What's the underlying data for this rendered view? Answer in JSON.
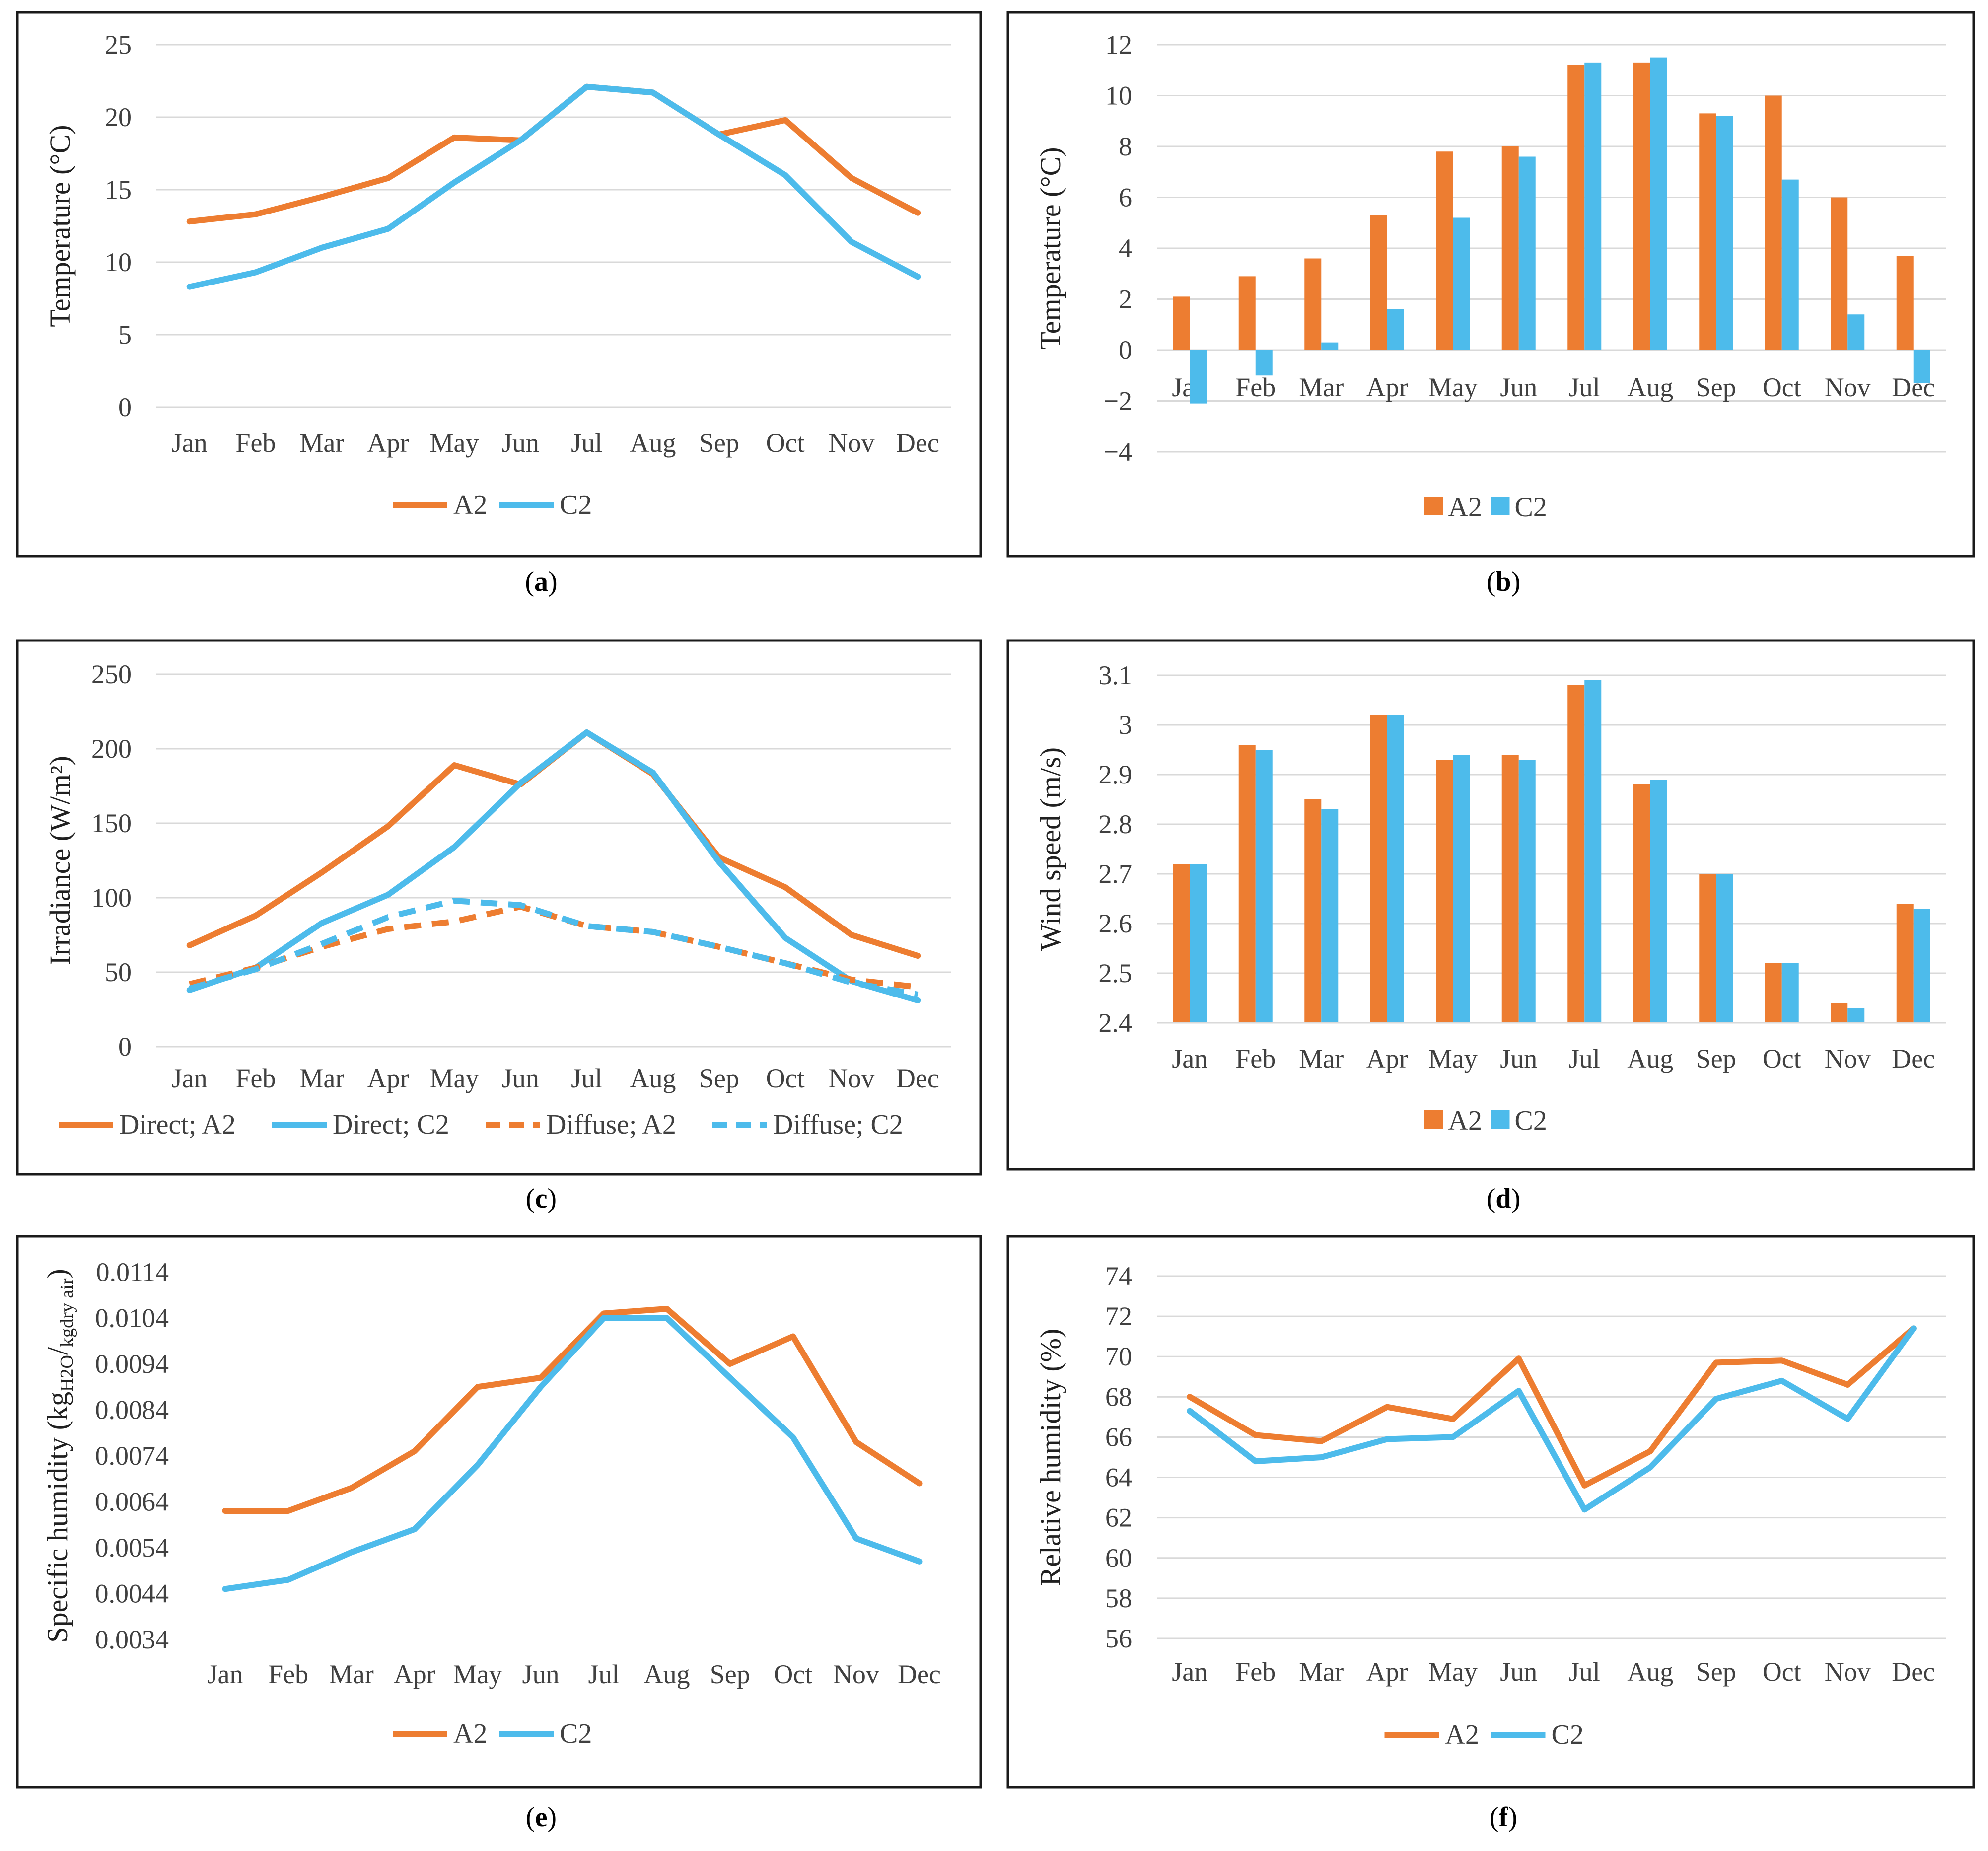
{
  "colors": {
    "A2": "#ed7d31",
    "C2": "#4dbbeb"
  },
  "months": [
    "Jan",
    "Feb",
    "Mar",
    "Apr",
    "May",
    "Jun",
    "Jul",
    "Aug",
    "Sep",
    "Oct",
    "Nov",
    "Dec"
  ],
  "chart_data": [
    {
      "id": "a",
      "caption_letter": "a",
      "type": "line",
      "ylabel": "Temperature (°C)",
      "ylim": [
        0,
        25
      ],
      "yticks": [
        "0",
        "5",
        "10",
        "15",
        "20",
        "25"
      ],
      "grid": true,
      "legend": "bottom",
      "series": [
        {
          "name": "A2",
          "style": "solid",
          "values": [
            12.8,
            13.3,
            14.5,
            15.8,
            18.6,
            18.4,
            22.1,
            21.7,
            18.8,
            19.8,
            15.8,
            13.4
          ]
        },
        {
          "name": "C2",
          "style": "solid",
          "values": [
            8.3,
            9.3,
            11.0,
            12.3,
            15.5,
            18.4,
            22.1,
            21.7,
            18.8,
            16.0,
            11.4,
            9.0
          ]
        }
      ]
    },
    {
      "id": "b",
      "caption_letter": "b",
      "type": "bar",
      "ylabel": "Temperature (°C)",
      "ylim": [
        -4,
        12
      ],
      "yticks": [
        "−4",
        "−2",
        "0",
        "2",
        "4",
        "6",
        "8",
        "10",
        "12"
      ],
      "grid": true,
      "legend": "bottom",
      "category_labels_at": "zero",
      "series": [
        {
          "name": "A2",
          "values": [
            2.1,
            2.9,
            3.6,
            5.3,
            7.8,
            8.0,
            11.2,
            11.3,
            9.3,
            10.0,
            6.0,
            3.7
          ]
        },
        {
          "name": "C2",
          "values": [
            -2.1,
            -1.0,
            0.3,
            1.6,
            5.2,
            7.6,
            11.3,
            11.5,
            9.2,
            6.7,
            1.4,
            -1.3
          ]
        }
      ]
    },
    {
      "id": "c",
      "caption_letter": "c",
      "type": "line",
      "ylabel": "Irradiance (W/m²)",
      "ylim": [
        0,
        250
      ],
      "yticks": [
        "0",
        "50",
        "100",
        "150",
        "200",
        "250"
      ],
      "grid": true,
      "legend": "bottom",
      "series": [
        {
          "name": "Direct; A2",
          "color_key": "A2",
          "style": "solid",
          "values": [
            68,
            88,
            117,
            148,
            189,
            176,
            211,
            183,
            127,
            107,
            75,
            61
          ]
        },
        {
          "name": "Direct; C2",
          "color_key": "C2",
          "style": "solid",
          "values": [
            38,
            53,
            83,
            102,
            134,
            177,
            211,
            184,
            124,
            73,
            44,
            31
          ]
        },
        {
          "name": "Diffuse; A2",
          "color_key": "A2",
          "style": "dashed",
          "values": [
            42,
            53,
            67,
            79,
            84,
            94,
            81,
            77,
            67,
            56,
            45,
            40
          ]
        },
        {
          "name": "Diffuse; C2",
          "color_key": "C2",
          "style": "dashed",
          "values": [
            39,
            52,
            69,
            87,
            98,
            95,
            81,
            77,
            67,
            56,
            43,
            35
          ]
        }
      ]
    },
    {
      "id": "d",
      "caption_letter": "d",
      "type": "bar",
      "ylabel": "Wind speed (m/s)",
      "ylim": [
        2.4,
        3.1
      ],
      "yticks": [
        "2.4",
        "2.5",
        "2.6",
        "2.7",
        "2.8",
        "2.9",
        "3",
        "3.1"
      ],
      "grid": true,
      "legend": "bottom",
      "category_labels_at": "bottom",
      "series": [
        {
          "name": "A2",
          "values": [
            2.72,
            2.96,
            2.85,
            3.02,
            2.93,
            2.94,
            3.08,
            2.88,
            2.7,
            2.52,
            2.44,
            2.64
          ]
        },
        {
          "name": "C2",
          "values": [
            2.72,
            2.95,
            2.83,
            3.02,
            2.94,
            2.93,
            3.09,
            2.89,
            2.7,
            2.52,
            2.43,
            2.63
          ]
        }
      ]
    },
    {
      "id": "e",
      "caption_letter": "e",
      "type": "line",
      "ylabel_main": "Specific humidity (kg",
      "ylabel_sub1": "H2O",
      "ylabel_mid": "/",
      "ylabel_sub2": "kgdry air",
      "ylabel_end": ")",
      "ylim": [
        0.0034,
        0.0114
      ],
      "yticks": [
        "0.0034",
        "0.0044",
        "0.0054",
        "0.0064",
        "0.0074",
        "0.0084",
        "0.0094",
        "0.0104",
        "0.0114"
      ],
      "grid": false,
      "legend": "bottom",
      "series": [
        {
          "name": "A2",
          "style": "solid",
          "values": [
            0.0062,
            0.0062,
            0.0067,
            0.0075,
            0.0089,
            0.0091,
            0.0105,
            0.0106,
            0.0094,
            0.01,
            0.0077,
            0.0068
          ]
        },
        {
          "name": "C2",
          "style": "solid",
          "values": [
            0.0045,
            0.0047,
            0.0053,
            0.0058,
            0.0072,
            0.0089,
            0.0104,
            0.0104,
            0.0091,
            0.0078,
            0.0056,
            0.0051
          ]
        }
      ]
    },
    {
      "id": "f",
      "caption_letter": "f",
      "type": "line",
      "ylabel": "Relative humidity (%)",
      "ylim": [
        56,
        74
      ],
      "yticks": [
        "56",
        "58",
        "60",
        "62",
        "64",
        "66",
        "68",
        "70",
        "72",
        "74"
      ],
      "grid": true,
      "legend": "bottom",
      "series": [
        {
          "name": "A2",
          "style": "solid",
          "values": [
            68.0,
            66.1,
            65.8,
            67.5,
            66.9,
            69.9,
            63.6,
            65.3,
            69.7,
            69.8,
            68.6,
            71.4
          ]
        },
        {
          "name": "C2",
          "style": "solid",
          "values": [
            67.3,
            64.8,
            65.0,
            65.9,
            66.0,
            68.3,
            62.4,
            64.5,
            67.9,
            68.8,
            66.9,
            71.4
          ]
        }
      ]
    }
  ]
}
